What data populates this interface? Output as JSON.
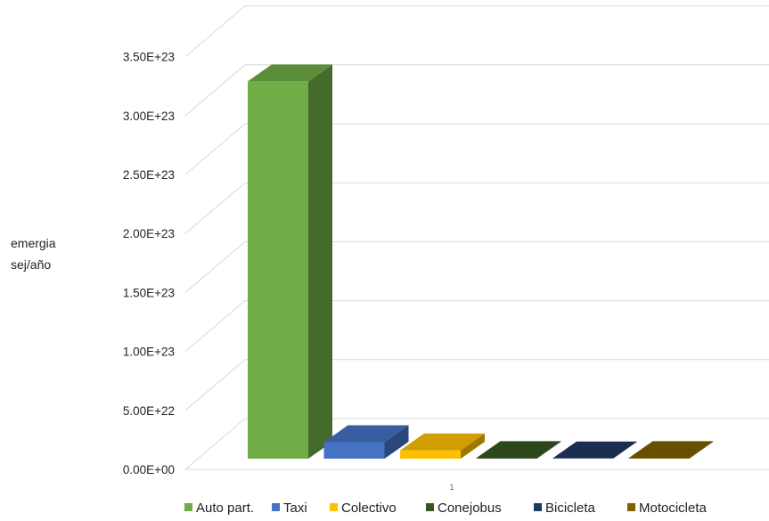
{
  "chart_data": {
    "type": "bar",
    "title": "",
    "ylabel_lines": [
      "emergia",
      "sej/año"
    ],
    "xlabel": "",
    "categories": [
      "1"
    ],
    "yticks": [
      "0.00E+00",
      "5.00E+22",
      "1.00E+23",
      "1.50E+23",
      "2.00E+23",
      "2.50E+23",
      "3.00E+23",
      "3.50E+23"
    ],
    "ylim": [
      0,
      3.5e+23
    ],
    "series": [
      {
        "name": "Auto part.",
        "values": [
          3.2e+23
        ],
        "color": "#70AD47"
      },
      {
        "name": "Taxi",
        "values": [
          1.4e+22
        ],
        "color": "#4472C4"
      },
      {
        "name": "Colectivo",
        "values": [
          7e+21
        ],
        "color": "#FFC000"
      },
      {
        "name": "Conejobus",
        "values": [
          5e+20
        ],
        "color": "#375623"
      },
      {
        "name": "Bicicleta",
        "values": [
          2e+20
        ],
        "color": "#203864"
      },
      {
        "name": "Motocicleta",
        "values": [
          5e+20
        ],
        "color": "#7F6000"
      }
    ],
    "legend_position": "bottom",
    "grid": true,
    "style": "3d"
  }
}
